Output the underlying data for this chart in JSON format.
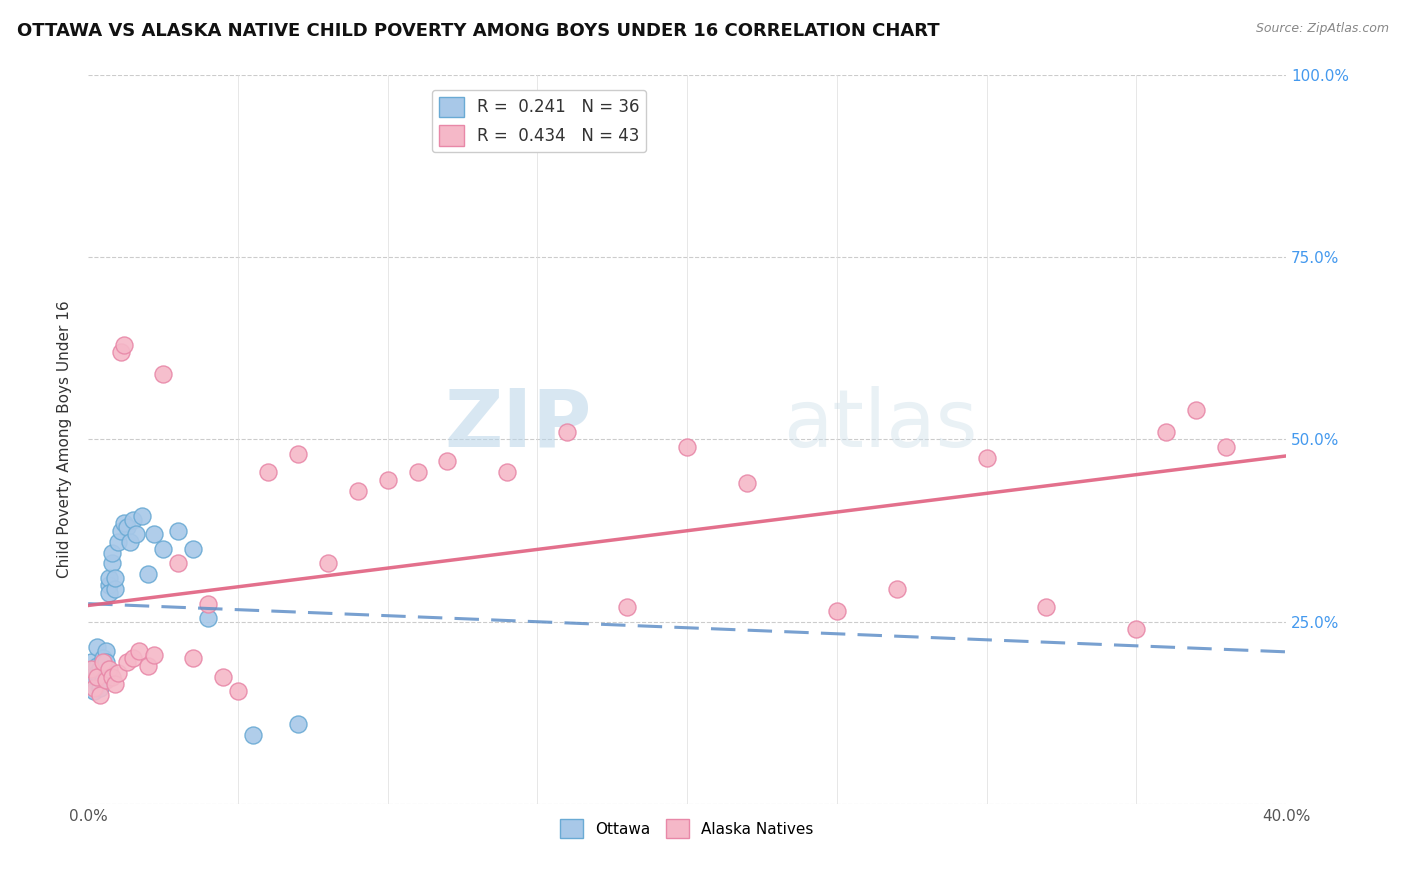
{
  "title": "OTTAWA VS ALASKA NATIVE CHILD POVERTY AMONG BOYS UNDER 16 CORRELATION CHART",
  "source": "Source: ZipAtlas.com",
  "ylabel": "Child Poverty Among Boys Under 16",
  "xlim": [
    0,
    0.4
  ],
  "ylim": [
    0,
    1.0
  ],
  "xticks": [
    0.0,
    0.05,
    0.1,
    0.15,
    0.2,
    0.25,
    0.3,
    0.35,
    0.4
  ],
  "yticks": [
    0.0,
    0.25,
    0.5,
    0.75,
    1.0
  ],
  "ottawa_color": "#a8c8e8",
  "alaska_color": "#f5b8c8",
  "ottawa_edge": "#6aaad4",
  "alaska_edge": "#e888a8",
  "trend_ottawa_color": "#6090c8",
  "trend_alaska_color": "#e06080",
  "ottawa_R": 0.241,
  "ottawa_N": 36,
  "alaska_R": 0.434,
  "alaska_N": 43,
  "watermark": "ZIPatlas",
  "watermark_color": "#cce0f0",
  "ottawa_x": [
    0.001,
    0.001,
    0.002,
    0.002,
    0.003,
    0.003,
    0.003,
    0.004,
    0.004,
    0.005,
    0.005,
    0.006,
    0.006,
    0.007,
    0.007,
    0.007,
    0.008,
    0.008,
    0.009,
    0.009,
    0.01,
    0.011,
    0.012,
    0.013,
    0.014,
    0.015,
    0.016,
    0.018,
    0.02,
    0.022,
    0.025,
    0.03,
    0.035,
    0.04,
    0.055,
    0.07
  ],
  "ottawa_y": [
    0.195,
    0.175,
    0.17,
    0.155,
    0.215,
    0.19,
    0.18,
    0.16,
    0.185,
    0.17,
    0.2,
    0.21,
    0.195,
    0.3,
    0.31,
    0.29,
    0.33,
    0.345,
    0.295,
    0.31,
    0.36,
    0.375,
    0.385,
    0.38,
    0.36,
    0.39,
    0.37,
    0.395,
    0.315,
    0.37,
    0.35,
    0.375,
    0.35,
    0.255,
    0.095,
    0.11
  ],
  "alaska_x": [
    0.001,
    0.002,
    0.003,
    0.004,
    0.005,
    0.006,
    0.007,
    0.008,
    0.009,
    0.01,
    0.011,
    0.012,
    0.013,
    0.015,
    0.017,
    0.02,
    0.022,
    0.025,
    0.03,
    0.035,
    0.04,
    0.045,
    0.05,
    0.06,
    0.07,
    0.08,
    0.09,
    0.1,
    0.11,
    0.12,
    0.14,
    0.16,
    0.18,
    0.2,
    0.22,
    0.25,
    0.27,
    0.3,
    0.32,
    0.35,
    0.36,
    0.37,
    0.38
  ],
  "alaska_y": [
    0.185,
    0.16,
    0.175,
    0.15,
    0.195,
    0.17,
    0.185,
    0.175,
    0.165,
    0.18,
    0.62,
    0.63,
    0.195,
    0.2,
    0.21,
    0.19,
    0.205,
    0.59,
    0.33,
    0.2,
    0.275,
    0.175,
    0.155,
    0.455,
    0.48,
    0.33,
    0.43,
    0.445,
    0.455,
    0.47,
    0.455,
    0.51,
    0.27,
    0.49,
    0.44,
    0.265,
    0.295,
    0.475,
    0.27,
    0.24,
    0.51,
    0.54,
    0.49
  ]
}
